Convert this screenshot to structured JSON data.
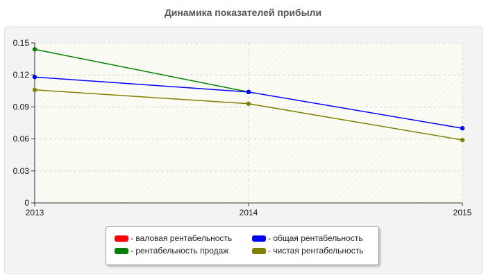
{
  "chart_data": {
    "type": "line",
    "title": "Динамика показателей прибыли",
    "x": [
      "2013",
      "2014",
      "2015"
    ],
    "ylim": [
      0,
      0.15
    ],
    "yticks": [
      "0",
      "0.03",
      "0.06",
      "0.09",
      "0.12",
      "0.15"
    ],
    "grid": true,
    "legend_position": "bottom",
    "series": [
      {
        "name": "валовая рентабельность",
        "color": "#ff0000",
        "values": [
          null,
          null,
          null
        ]
      },
      {
        "name": "общая рентабельность",
        "color": "#0000ff",
        "values": [
          0.118,
          0.104,
          0.07
        ]
      },
      {
        "name": "рентабельность продаж",
        "color": "#007f00",
        "values": [
          0.144,
          0.104,
          null
        ]
      },
      {
        "name": "чистая рентабельность",
        "color": "#808000",
        "values": [
          0.106,
          0.093,
          0.059
        ]
      }
    ]
  },
  "legend": {
    "items": [
      {
        "label": "- валовая рентабельность",
        "color": "#ff0000"
      },
      {
        "label": "- общая рентабельность",
        "color": "#0000ff"
      },
      {
        "label": "- рентабельность продаж",
        "color": "#007f00"
      },
      {
        "label": "- чистая рентабельность",
        "color": "#808000"
      }
    ]
  }
}
